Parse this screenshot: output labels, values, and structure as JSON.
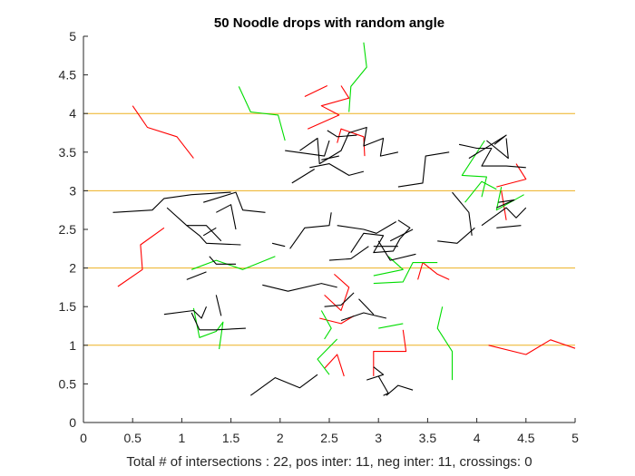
{
  "chart_data": {
    "type": "line",
    "title": "50 Noodle drops with random angle",
    "xlabel": "Total # of intersections : 22, pos inter: 11, neg inter: 11, crossings: 0",
    "ylabel": "",
    "xlim": [
      0,
      5
    ],
    "ylim": [
      0,
      5
    ],
    "xticks": [
      "0",
      "0.5",
      "1",
      "1.5",
      "2",
      "2.5",
      "3",
      "3.5",
      "4",
      "4.5",
      "5"
    ],
    "yticks": [
      "0",
      "0.5",
      "1",
      "1.5",
      "2",
      "2.5",
      "3",
      "3.5",
      "4",
      "4.5",
      "5"
    ],
    "grid": false,
    "legend": "none",
    "reference_lines": {
      "y": [
        1,
        2,
        3,
        4
      ],
      "color": "#EDB120"
    },
    "series": [
      {
        "color": "#ff0000",
        "points": [
          [
            0.5,
            4.1
          ],
          [
            0.65,
            3.82
          ],
          [
            0.95,
            3.7
          ],
          [
            1.12,
            3.42
          ]
        ]
      },
      {
        "color": "#ff0000",
        "points": [
          [
            0.35,
            1.76
          ],
          [
            0.6,
            1.98
          ],
          [
            0.58,
            2.3
          ],
          [
            0.82,
            2.52
          ]
        ]
      },
      {
        "color": "#ff0000",
        "points": [
          [
            2.28,
            3.8
          ],
          [
            2.6,
            3.98
          ],
          [
            2.42,
            4.1
          ],
          [
            2.7,
            4.2
          ],
          [
            2.62,
            4.36
          ]
        ]
      },
      {
        "color": "#ff0000",
        "points": [
          [
            2.25,
            4.22
          ],
          [
            2.48,
            4.36
          ]
        ]
      },
      {
        "color": "#ff0000",
        "points": [
          [
            2.58,
            3.62
          ],
          [
            2.62,
            3.8
          ],
          [
            2.85,
            3.7
          ],
          [
            2.86,
            3.45
          ]
        ]
      },
      {
        "color": "#ff0000",
        "points": [
          [
            2.45,
            1.65
          ],
          [
            2.62,
            1.45
          ],
          [
            2.7,
            1.75
          ],
          [
            2.55,
            1.92
          ]
        ]
      },
      {
        "color": "#ff0000",
        "points": [
          [
            2.45,
            0.7
          ],
          [
            2.58,
            0.88
          ],
          [
            2.65,
            0.6
          ]
        ]
      },
      {
        "color": "#ff0000",
        "points": [
          [
            2.95,
            0.6
          ],
          [
            2.95,
            0.92
          ],
          [
            3.28,
            0.92
          ],
          [
            3.25,
            1.2
          ]
        ]
      },
      {
        "color": "#ff0000",
        "points": [
          [
            3.4,
            1.85
          ],
          [
            3.45,
            2.07
          ],
          [
            3.6,
            1.92
          ],
          [
            3.72,
            1.85
          ]
        ]
      },
      {
        "color": "#ff0000",
        "points": [
          [
            4.2,
            3.05
          ],
          [
            4.5,
            3.15
          ],
          [
            4.4,
            3.35
          ]
        ]
      },
      {
        "color": "#ff0000",
        "points": [
          [
            4.25,
            3.0
          ],
          [
            4.3,
            2.62
          ]
        ]
      },
      {
        "color": "#ff0000",
        "points": [
          [
            4.12,
            1.0
          ],
          [
            4.5,
            0.88
          ],
          [
            4.75,
            1.07
          ],
          [
            5.0,
            0.96
          ]
        ]
      },
      {
        "color": "#ff0000",
        "points": [
          [
            2.4,
            1.35
          ],
          [
            2.62,
            1.28
          ],
          [
            2.75,
            1.38
          ]
        ]
      },
      {
        "color": "#00dd00",
        "points": [
          [
            2.85,
            4.92
          ],
          [
            2.88,
            4.6
          ],
          [
            2.72,
            4.35
          ],
          [
            2.7,
            4.02
          ]
        ]
      },
      {
        "color": "#00dd00",
        "points": [
          [
            1.58,
            4.35
          ],
          [
            1.7,
            4.02
          ],
          [
            1.98,
            3.98
          ],
          [
            2.05,
            3.65
          ]
        ]
      },
      {
        "color": "#00dd00",
        "points": [
          [
            4.08,
            3.65
          ],
          [
            3.85,
            3.2
          ],
          [
            4.1,
            3.18
          ],
          [
            4.05,
            2.92
          ]
        ]
      },
      {
        "color": "#00dd00",
        "points": [
          [
            3.88,
            2.85
          ],
          [
            4.05,
            3.12
          ],
          [
            4.2,
            3.02
          ]
        ]
      },
      {
        "color": "#00dd00",
        "points": [
          [
            4.25,
            3.05
          ],
          [
            4.2,
            2.75
          ],
          [
            4.48,
            2.95
          ]
        ]
      },
      {
        "color": "#00dd00",
        "points": [
          [
            1.1,
            1.98
          ],
          [
            1.35,
            2.1
          ],
          [
            1.62,
            1.98
          ],
          [
            1.95,
            2.15
          ]
        ]
      },
      {
        "color": "#00dd00",
        "points": [
          [
            1.12,
            1.48
          ],
          [
            1.18,
            1.1
          ],
          [
            1.35,
            1.18
          ],
          [
            1.42,
            1.3
          ],
          [
            1.38,
            0.95
          ]
        ]
      },
      {
        "color": "#00dd00",
        "points": [
          [
            2.95,
            1.8
          ],
          [
            3.25,
            1.82
          ],
          [
            3.35,
            2.07
          ],
          [
            3.6,
            2.07
          ]
        ]
      },
      {
        "color": "#00dd00",
        "points": [
          [
            3.1,
            2.15
          ],
          [
            3.25,
            1.98
          ],
          [
            2.95,
            1.9
          ]
        ]
      },
      {
        "color": "#00dd00",
        "points": [
          [
            2.58,
            1.08
          ],
          [
            2.38,
            0.82
          ],
          [
            2.5,
            0.62
          ]
        ]
      },
      {
        "color": "#00dd00",
        "points": [
          [
            2.42,
            1.45
          ],
          [
            2.52,
            1.22
          ],
          [
            2.45,
            1.08
          ]
        ]
      },
      {
        "color": "#00dd00",
        "points": [
          [
            3.65,
            1.5
          ],
          [
            3.6,
            1.22
          ],
          [
            3.75,
            0.92
          ],
          [
            3.75,
            0.55
          ]
        ]
      },
      {
        "color": "#00dd00",
        "points": [
          [
            3.0,
            1.22
          ],
          [
            3.25,
            1.28
          ]
        ]
      },
      {
        "color": "#000000",
        "points": [
          [
            2.2,
            3.52
          ],
          [
            2.38,
            3.68
          ],
          [
            2.4,
            3.35
          ],
          [
            2.62,
            3.52
          ],
          [
            2.7,
            3.75
          ],
          [
            2.88,
            3.82
          ],
          [
            2.85,
            3.58
          ],
          [
            3.05,
            3.68
          ],
          [
            3.02,
            3.45
          ],
          [
            3.2,
            3.5
          ]
        ]
      },
      {
        "color": "#000000",
        "points": [
          [
            2.48,
            3.78
          ],
          [
            2.58,
            3.7
          ],
          [
            2.78,
            3.72
          ]
        ]
      },
      {
        "color": "#000000",
        "points": [
          [
            2.05,
            3.52
          ],
          [
            2.45,
            3.45
          ],
          [
            2.5,
            3.65
          ]
        ]
      },
      {
        "color": "#000000",
        "points": [
          [
            2.3,
            3.3
          ],
          [
            2.5,
            3.35
          ],
          [
            2.7,
            3.2
          ],
          [
            2.85,
            3.25
          ]
        ]
      },
      {
        "color": "#000000",
        "points": [
          [
            2.42,
            3.4
          ],
          [
            2.6,
            3.45
          ]
        ]
      },
      {
        "color": "#000000",
        "points": [
          [
            2.12,
            3.1
          ],
          [
            2.35,
            3.28
          ]
        ]
      },
      {
        "color": "#000000",
        "points": [
          [
            3.2,
            3.05
          ],
          [
            3.45,
            3.1
          ],
          [
            3.48,
            3.45
          ],
          [
            3.72,
            3.5
          ]
        ]
      },
      {
        "color": "#000000",
        "points": [
          [
            3.82,
            3.6
          ],
          [
            4.0,
            3.55
          ],
          [
            4.15,
            3.55
          ],
          [
            4.05,
            3.32
          ],
          [
            4.3,
            3.32
          ],
          [
            4.5,
            3.3
          ]
        ]
      },
      {
        "color": "#000000",
        "points": [
          [
            3.92,
            3.42
          ],
          [
            4.15,
            3.6
          ],
          [
            4.3,
            3.72
          ],
          [
            4.18,
            3.6
          ]
        ]
      },
      {
        "color": "#000000",
        "points": [
          [
            4.1,
            3.65
          ],
          [
            4.32,
            3.42
          ],
          [
            4.3,
            3.68
          ]
        ]
      },
      {
        "color": "#000000",
        "points": [
          [
            4.22,
            2.85
          ],
          [
            4.38,
            2.88
          ],
          [
            4.2,
            2.78
          ]
        ]
      },
      {
        "color": "#000000",
        "points": [
          [
            4.05,
            2.55
          ],
          [
            4.3,
            2.78
          ],
          [
            4.4,
            2.65
          ],
          [
            4.5,
            2.78
          ]
        ]
      },
      {
        "color": "#000000",
        "points": [
          [
            3.75,
            2.98
          ],
          [
            3.92,
            2.72
          ],
          [
            3.95,
            2.42
          ]
        ]
      },
      {
        "color": "#000000",
        "points": [
          [
            3.6,
            2.35
          ],
          [
            3.8,
            2.32
          ],
          [
            3.98,
            2.52
          ]
        ]
      },
      {
        "color": "#000000",
        "points": [
          [
            4.2,
            2.52
          ],
          [
            4.45,
            2.55
          ]
        ]
      },
      {
        "color": "#000000",
        "points": [
          [
            0.3,
            2.72
          ],
          [
            0.7,
            2.75
          ],
          [
            0.82,
            2.9
          ],
          [
            1.1,
            2.95
          ],
          [
            1.5,
            2.98
          ]
        ]
      },
      {
        "color": "#000000",
        "points": [
          [
            0.85,
            2.78
          ],
          [
            1.05,
            2.55
          ],
          [
            1.25,
            2.55
          ],
          [
            1.4,
            2.35
          ]
        ]
      },
      {
        "color": "#000000",
        "points": [
          [
            1.35,
            2.72
          ],
          [
            1.5,
            2.82
          ],
          [
            1.55,
            2.5
          ]
        ]
      },
      {
        "color": "#000000",
        "points": [
          [
            1.22,
            2.85
          ],
          [
            1.55,
            2.98
          ],
          [
            1.62,
            2.75
          ],
          [
            1.85,
            2.72
          ]
        ]
      },
      {
        "color": "#000000",
        "points": [
          [
            1.05,
            2.55
          ],
          [
            1.18,
            2.42
          ],
          [
            1.25,
            2.32
          ],
          [
            1.6,
            2.3
          ]
        ]
      },
      {
        "color": "#000000",
        "points": [
          [
            1.28,
            2.15
          ],
          [
            1.35,
            2.05
          ],
          [
            1.55,
            2.05
          ]
        ]
      },
      {
        "color": "#000000",
        "points": [
          [
            1.22,
            2.42
          ],
          [
            1.35,
            2.52
          ]
        ]
      },
      {
        "color": "#000000",
        "points": [
          [
            1.05,
            1.85
          ],
          [
            1.25,
            1.95
          ]
        ]
      },
      {
        "color": "#000000",
        "points": [
          [
            0.82,
            1.4
          ],
          [
            1.12,
            1.45
          ],
          [
            1.2,
            1.35
          ],
          [
            1.25,
            1.5
          ]
        ]
      },
      {
        "color": "#000000",
        "points": [
          [
            1.1,
            1.42
          ],
          [
            1.18,
            1.2
          ],
          [
            1.35,
            1.2
          ],
          [
            1.65,
            1.22
          ]
        ]
      },
      {
        "color": "#000000",
        "points": [
          [
            1.35,
            1.65
          ],
          [
            1.4,
            1.38
          ]
        ]
      },
      {
        "color": "#000000",
        "points": [
          [
            1.82,
            1.78
          ],
          [
            2.08,
            1.7
          ],
          [
            2.42,
            1.8
          ],
          [
            2.58,
            1.75
          ]
        ]
      },
      {
        "color": "#000000",
        "points": [
          [
            2.1,
            2.25
          ],
          [
            2.25,
            2.52
          ],
          [
            2.5,
            2.55
          ],
          [
            2.52,
            2.72
          ]
        ]
      },
      {
        "color": "#000000",
        "points": [
          [
            1.92,
            2.32
          ],
          [
            2.05,
            2.28
          ]
        ]
      },
      {
        "color": "#000000",
        "points": [
          [
            2.58,
            2.55
          ],
          [
            2.85,
            2.5
          ],
          [
            2.98,
            2.45
          ],
          [
            3.18,
            2.6
          ]
        ]
      },
      {
        "color": "#000000",
        "points": [
          [
            2.72,
            2.2
          ],
          [
            2.85,
            2.45
          ],
          [
            3.05,
            2.42
          ],
          [
            2.95,
            2.2
          ],
          [
            3.15,
            2.22
          ],
          [
            3.22,
            2.38
          ],
          [
            3.32,
            2.52
          ],
          [
            3.2,
            2.62
          ]
        ]
      },
      {
        "color": "#000000",
        "points": [
          [
            3.0,
            2.35
          ],
          [
            3.12,
            2.1
          ],
          [
            3.38,
            2.18
          ]
        ]
      },
      {
        "color": "#000000",
        "points": [
          [
            2.5,
            2.1
          ],
          [
            2.72,
            2.12
          ],
          [
            2.9,
            2.28
          ]
        ]
      },
      {
        "color": "#000000",
        "points": [
          [
            3.12,
            2.35
          ],
          [
            3.35,
            2.5
          ]
        ]
      },
      {
        "color": "#000000",
        "points": [
          [
            2.95,
            2.28
          ],
          [
            3.2,
            2.28
          ]
        ]
      },
      {
        "color": "#000000",
        "points": [
          [
            2.45,
            1.5
          ],
          [
            2.62,
            1.52
          ],
          [
            2.75,
            1.68
          ]
        ]
      },
      {
        "color": "#000000",
        "points": [
          [
            2.62,
            1.32
          ],
          [
            2.85,
            1.42
          ],
          [
            3.08,
            1.35
          ]
        ]
      },
      {
        "color": "#000000",
        "points": [
          [
            2.8,
            1.6
          ],
          [
            2.95,
            1.4
          ]
        ]
      },
      {
        "color": "#000000",
        "points": [
          [
            1.7,
            0.35
          ],
          [
            1.95,
            0.58
          ],
          [
            2.2,
            0.45
          ],
          [
            2.38,
            0.62
          ]
        ]
      },
      {
        "color": "#000000",
        "points": [
          [
            2.88,
            0.55
          ],
          [
            3.05,
            0.62
          ],
          [
            2.95,
            0.72
          ]
        ]
      },
      {
        "color": "#000000",
        "points": [
          [
            3.08,
            0.35
          ],
          [
            3.2,
            0.48
          ],
          [
            3.35,
            0.42
          ]
        ]
      },
      {
        "color": "#000000",
        "points": [
          [
            3.0,
            0.6
          ],
          [
            3.1,
            0.38
          ],
          [
            3.05,
            0.35
          ]
        ]
      }
    ]
  }
}
